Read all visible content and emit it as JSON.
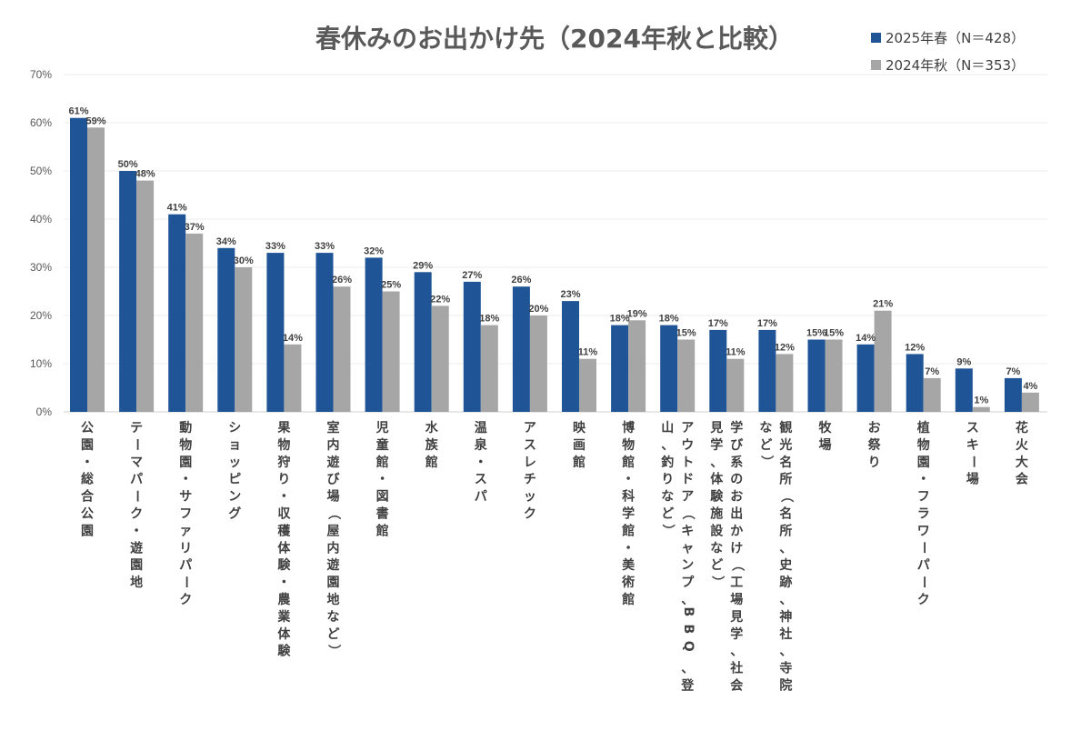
{
  "chart_data": {
    "type": "bar",
    "title": "春休みのお出かけ先（2024年秋と比較）",
    "ylim": [
      0,
      70
    ],
    "yticks": [
      "0%",
      "10%",
      "20%",
      "30%",
      "40%",
      "50%",
      "60%",
      "70%"
    ],
    "legend_position": "top-right",
    "grid": true,
    "categories": [
      "公園・総合公園",
      "テーマパーク・遊園地",
      "動物園・サファリパーク",
      "ショッピング",
      "果物狩り・収穫体験・農業体験",
      "室内遊び場（屋内遊園地など）",
      "児童館・図書館",
      "水族館",
      "温泉・スパ",
      "アスレチック",
      "映画館",
      "博物館・科学館・美術館",
      "アウトドア（キャンプ、BBQ、登山、釣りなど）",
      "学び系のお出かけ（工場見学、社会見学、体験施設など）",
      "観光名所（名所、史跡、神社、寺院など）",
      "牧場",
      "お祭り",
      "植物園・フラワーパーク",
      "スキー場",
      "花火大会"
    ],
    "series": [
      {
        "name": "2025年春（N＝428）",
        "color": "#1F5597",
        "values": [
          61,
          50,
          41,
          34,
          33,
          33,
          32,
          29,
          27,
          26,
          23,
          18,
          18,
          17,
          17,
          15,
          14,
          12,
          9,
          7
        ],
        "labels": [
          "61%",
          "50%",
          "41%",
          "34%",
          "33%",
          "33%",
          "32%",
          "29%",
          "27%",
          "26%",
          "23%",
          "18%",
          "18%",
          "17%",
          "17%",
          "15%",
          "14%",
          "12%",
          "9%",
          "7%"
        ]
      },
      {
        "name": "2024年秋（N＝353）",
        "color": "#A6A6A6",
        "values": [
          59,
          48,
          37,
          30,
          14,
          26,
          25,
          22,
          18,
          20,
          11,
          19,
          15,
          11,
          12,
          15,
          21,
          7,
          1,
          4
        ],
        "labels": [
          "59%",
          "48%",
          "37%",
          "30%",
          "14%",
          "26%",
          "25%",
          "22%",
          "18%",
          "20%",
          "11%",
          "19%",
          "15%",
          "11%",
          "12%",
          "15%",
          "21%",
          "7%",
          "1%",
          "4%"
        ]
      }
    ]
  }
}
